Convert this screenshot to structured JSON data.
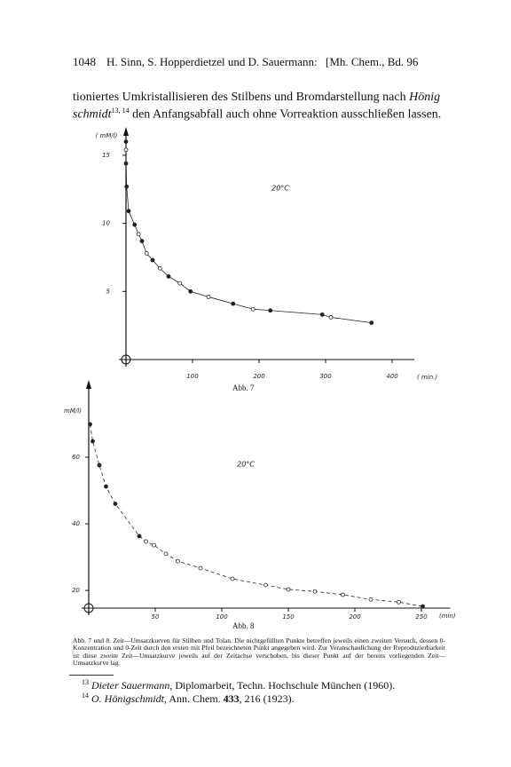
{
  "header": {
    "page": "1048",
    "authors": "H. Sinn, S. Hopperdietzel und D. Sauermann:",
    "journal": "[Mh. Chem., Bd. 96"
  },
  "body": {
    "line1": [
      "tioniertes Umkristallisieren des Stilbens und Bromdarstellung nach ",
      "Hönig"
    ],
    "line2": [
      "schmidt",
      "13, 14",
      " den Anfangsabfall auch ohne Vorreaktion ausschließen lassen."
    ]
  },
  "chart_data": [
    {
      "type": "scatter",
      "ylabel": "( mM/l)",
      "xlabel": "( min.)",
      "annotation": "20°C",
      "caption": "Abb. 7",
      "xlim": [
        0,
        420
      ],
      "ylim": [
        0,
        16.3
      ],
      "xticks": [
        100,
        200,
        300,
        400
      ],
      "yticks": [
        5,
        10,
        15
      ],
      "color": "#222222",
      "curve": "solid",
      "series": [
        {
          "x": [
            0,
            0,
            0,
            1,
            4,
            13,
            19,
            24,
            31,
            40,
            51,
            64,
            81,
            97,
            124,
            161,
            191,
            217,
            295,
            308,
            369
          ],
          "values": [
            16,
            15.4,
            14.4,
            12.7,
            10.9,
            9.9,
            9.2,
            8.7,
            7.8,
            7.3,
            6.7,
            6.1,
            5.6,
            5,
            4.6,
            4.1,
            3.7,
            3.6,
            3.3,
            3.1,
            2.7
          ],
          "filled": [
            true,
            false,
            true,
            true,
            true,
            true,
            false,
            true,
            false,
            true,
            false,
            true,
            false,
            true,
            false,
            true,
            false,
            true,
            true,
            false,
            true
          ]
        }
      ]
    },
    {
      "type": "scatter",
      "ylabel": "mM/l)",
      "xlabel": "(min)",
      "annotation": "20°C",
      "caption": "Abb. 8",
      "xlim": [
        0,
        265
      ],
      "ylim": [
        14.7,
        80
      ],
      "xticks": [
        50,
        100,
        150,
        200,
        250
      ],
      "yticks": [
        20,
        40,
        60
      ],
      "color": "#222222",
      "curve": "dashed",
      "series": [
        {
          "x": [
            1,
            3,
            8,
            13,
            20,
            38,
            43,
            49,
            58,
            67,
            84,
            108,
            133,
            150,
            170,
            191,
            212,
            233,
            251
          ],
          "values": [
            69.9,
            64.8,
            57.6,
            51.2,
            46,
            36.3,
            34.7,
            33.6,
            31,
            28.8,
            26.7,
            23.5,
            21.6,
            20.3,
            19.7,
            18.7,
            17.3,
            16.5,
            15.2
          ],
          "filled": [
            true,
            true,
            true,
            true,
            true,
            true,
            false,
            false,
            false,
            false,
            false,
            false,
            false,
            false,
            false,
            false,
            false,
            false,
            true
          ]
        }
      ]
    }
  ],
  "caption": "Abb. 7 und 8. Zeit—Umsatzkurven für Stilben und Tolan. Die nichtgefüllten Punkte betreffen jeweils einen zweiten Versuch, dessen 0-Konzentration und 0-Zeit durch den ersten mit Pfeil bezeichneten Punkt angegeben wird. Zur Veranschaulichung der Reproduzierbarkeit ist diese zweite Zeit—Umsatzkurve jeweils auf der Zeitachse verschoben, bis dieser Punkt auf der bereits vorliegenden Zeit—Umsatzkurve lag",
  "footnotes": [
    [
      "13",
      "Dieter Sauermann",
      ", Diplomarbeit, Techn. Hochschule München (1960)."
    ],
    [
      "14",
      "O. Hönigschmidt",
      ", Ann. Chem. ",
      "433",
      ", 216 (1923)."
    ]
  ]
}
